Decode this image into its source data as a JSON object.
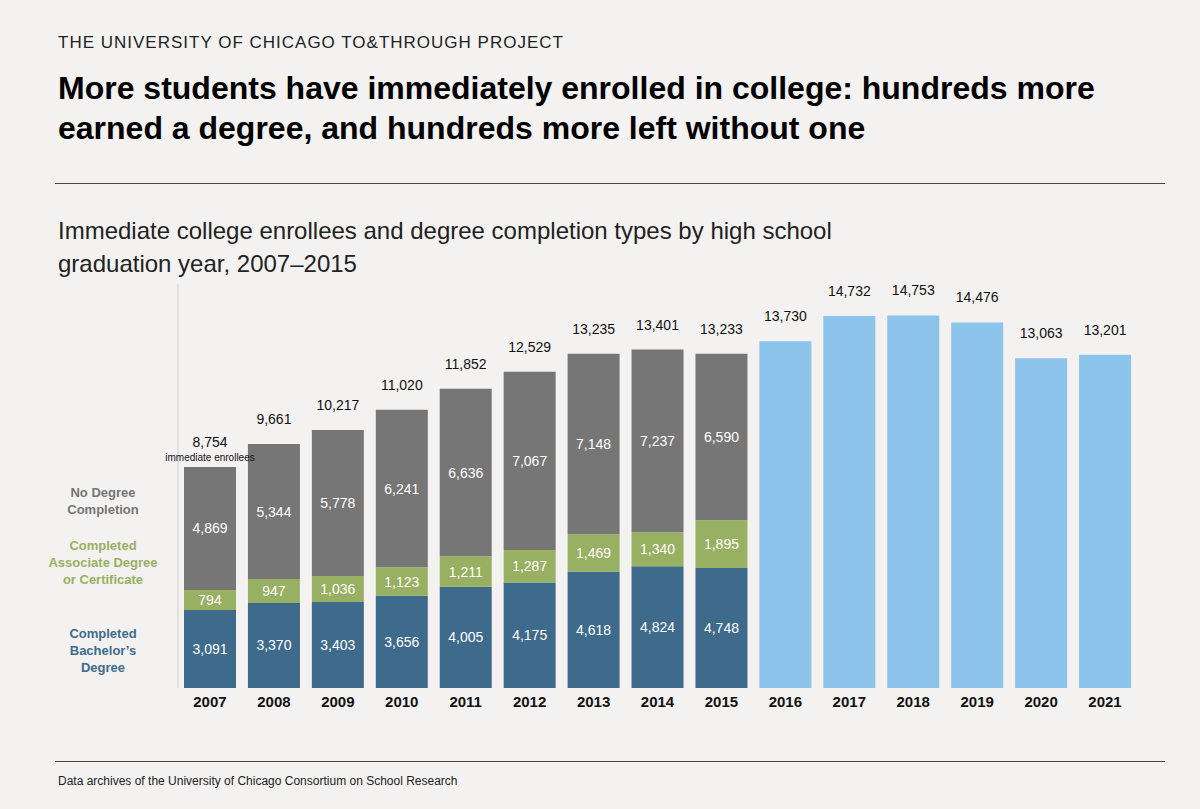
{
  "chart_data": {
    "type": "bar",
    "header": "THE UNIVERSITY OF CHICAGO TO&THROUGH PROJECT",
    "title": "More students have immediately enrolled in college: hundreds more earned a degree, and hundreds more left without one",
    "subtitle": "Immediate college enrollees and degree completion types by high school graduation year, 2007–2015",
    "source": "Data archives of the University of Chicago Consortium on School Research",
    "categories": [
      "2007",
      "2008",
      "2009",
      "2010",
      "2011",
      "2012",
      "2013",
      "2014",
      "2015",
      "2016",
      "2017",
      "2018",
      "2019",
      "2020",
      "2021"
    ],
    "series": [
      {
        "name": "Completed Bachelor’s Degree",
        "color": "#3e6b8c",
        "values": [
          3091,
          3370,
          3403,
          3656,
          4005,
          4175,
          4618,
          4824,
          4748,
          null,
          null,
          null,
          null,
          null,
          null
        ],
        "value_labels": [
          "3,091",
          "3,370",
          "3,403",
          "3,656",
          "4,005",
          "4,175",
          "4,618",
          "4,824",
          "4,748",
          null,
          null,
          null,
          null,
          null,
          null
        ]
      },
      {
        "name": "Completed Associate Degree or Certificate",
        "color": "#98b062",
        "values": [
          794,
          947,
          1036,
          1123,
          1211,
          1287,
          1469,
          1340,
          1895,
          null,
          null,
          null,
          null,
          null,
          null
        ],
        "value_labels": [
          "794",
          "947",
          "1,036",
          "1,123",
          "1,211",
          "1,287",
          "1,469",
          "1,340",
          "1,895",
          null,
          null,
          null,
          null,
          null,
          null
        ]
      },
      {
        "name": "No Degree Completion",
        "color": "#767676",
        "values": [
          4869,
          5344,
          5778,
          6241,
          6636,
          7067,
          7148,
          7237,
          6590,
          null,
          null,
          null,
          null,
          null,
          null
        ],
        "value_labels": [
          "4,869",
          "5,344",
          "5,778",
          "6,241",
          "6,636",
          "7,067",
          "7,148",
          "7,237",
          "6,590",
          null,
          null,
          null,
          null,
          null,
          null
        ]
      }
    ],
    "totals": {
      "color": "#8cc4ec",
      "values": [
        8754,
        9661,
        10217,
        11020,
        11852,
        12529,
        13235,
        13401,
        13233,
        13730,
        14732,
        14753,
        14476,
        13063,
        13201
      ],
      "value_labels": [
        "8,754",
        "9,661",
        "10,217",
        "11,020",
        "11,852",
        "12,529",
        "13,235",
        "13,401",
        "13,233",
        "13,730",
        "14,732",
        "14,753",
        "14,476",
        "13,063",
        "13,201"
      ]
    },
    "annotations": [
      {
        "text": "immediate enrollees",
        "category": "2007"
      }
    ],
    "ylim": [
      0,
      16000
    ],
    "stacked": true,
    "data_labels": true,
    "tick_labels": "x",
    "grid": false,
    "legend": "left"
  }
}
